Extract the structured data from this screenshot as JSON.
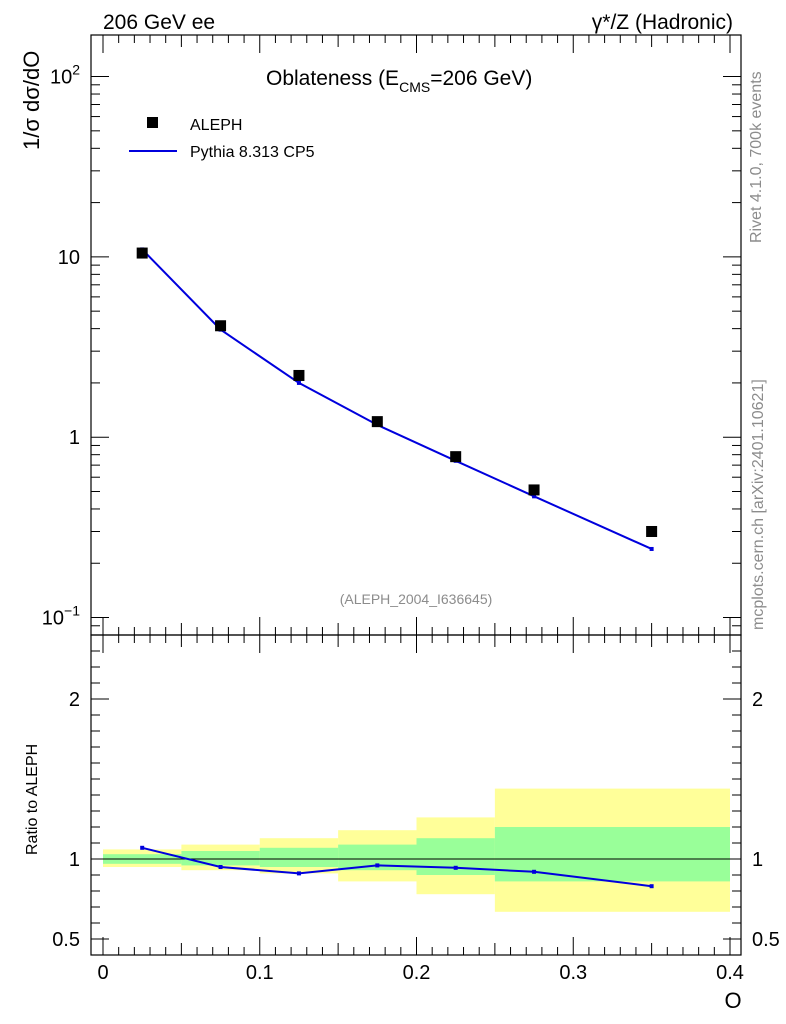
{
  "header": {
    "left": "206 GeV ee",
    "right": "γ*/Z (Hadronic)"
  },
  "side": {
    "rivet": "Rivet 4.1.0,  700k events",
    "mcplots": "mcplots.cern.ch [arXiv:2401.10621]"
  },
  "colors": {
    "mc": "#0000dd",
    "band_outer": "#ffff99",
    "band_inner": "#99ff99",
    "data": "#000000"
  },
  "chart_data": {
    "type": "scatter",
    "title_main": "Oblateness (E",
    "title_sub": "CMS",
    "title_end": "=206 GeV)",
    "analysis": "(ALEPH_2004_I636645)",
    "xlabel": "O",
    "ylabel": "1/σ  dσ/dO",
    "ratio_ylabel": "Ratio to ALEPH",
    "xlim": [
      0,
      0.4
    ],
    "ylim": [
      0.08,
      170
    ],
    "ratio_ylim": [
      0.4,
      2.4
    ],
    "xticks": [
      0,
      0.1,
      0.2,
      0.3,
      0.4
    ],
    "xtick_labels": [
      "0",
      "0.1",
      "0.2",
      "0.3",
      "0.4"
    ],
    "ytick_labels": [
      "10",
      "1"
    ],
    "ytick_values": [
      10,
      1
    ],
    "ytick_exp": [
      {
        "base": "10",
        "exp": "2",
        "value": 100
      },
      {
        "base": "10",
        "exp": "−1",
        "value": 0.1
      }
    ],
    "ratio_ticks": [
      2,
      1,
      0.5
    ],
    "ratio_tick_labels": [
      "2",
      "1",
      "0.5"
    ],
    "legend": {
      "data": "ALEPH",
      "mc": "Pythia 8.313 CP5"
    },
    "bins": [
      {
        "lo": 0.0,
        "hi": 0.05,
        "inner": [
          0.97,
          1.03
        ],
        "outer": [
          0.95,
          1.06
        ]
      },
      {
        "lo": 0.05,
        "hi": 0.1,
        "inner": [
          0.96,
          1.05
        ],
        "outer": [
          0.93,
          1.09
        ]
      },
      {
        "lo": 0.1,
        "hi": 0.15,
        "inner": [
          0.95,
          1.07
        ],
        "outer": [
          0.91,
          1.13
        ]
      },
      {
        "lo": 0.15,
        "hi": 0.2,
        "inner": [
          0.93,
          1.09
        ],
        "outer": [
          0.86,
          1.18
        ]
      },
      {
        "lo": 0.2,
        "hi": 0.25,
        "inner": [
          0.9,
          1.13
        ],
        "outer": [
          0.78,
          1.26
        ]
      },
      {
        "lo": 0.25,
        "hi": 0.4,
        "inner": [
          0.86,
          1.2
        ],
        "outer": [
          0.67,
          1.44
        ]
      }
    ],
    "series": [
      {
        "name": "ALEPH",
        "x": [
          0.025,
          0.075,
          0.125,
          0.175,
          0.225,
          0.275,
          0.35
        ],
        "values": [
          10.5,
          4.15,
          2.2,
          1.22,
          0.78,
          0.51,
          0.3
        ]
      },
      {
        "name": "Pythia 8.313 CP5",
        "x": [
          0.025,
          0.075,
          0.125,
          0.175,
          0.225,
          0.275,
          0.35
        ],
        "values": [
          11.0,
          3.95,
          2.0,
          1.17,
          0.74,
          0.47,
          0.24
        ]
      }
    ],
    "ratio": {
      "x": [
        0.025,
        0.075,
        0.125,
        0.175,
        0.225,
        0.275,
        0.35
      ],
      "values": [
        1.07,
        0.95,
        0.91,
        0.96,
        0.945,
        0.92,
        0.83
      ]
    }
  }
}
